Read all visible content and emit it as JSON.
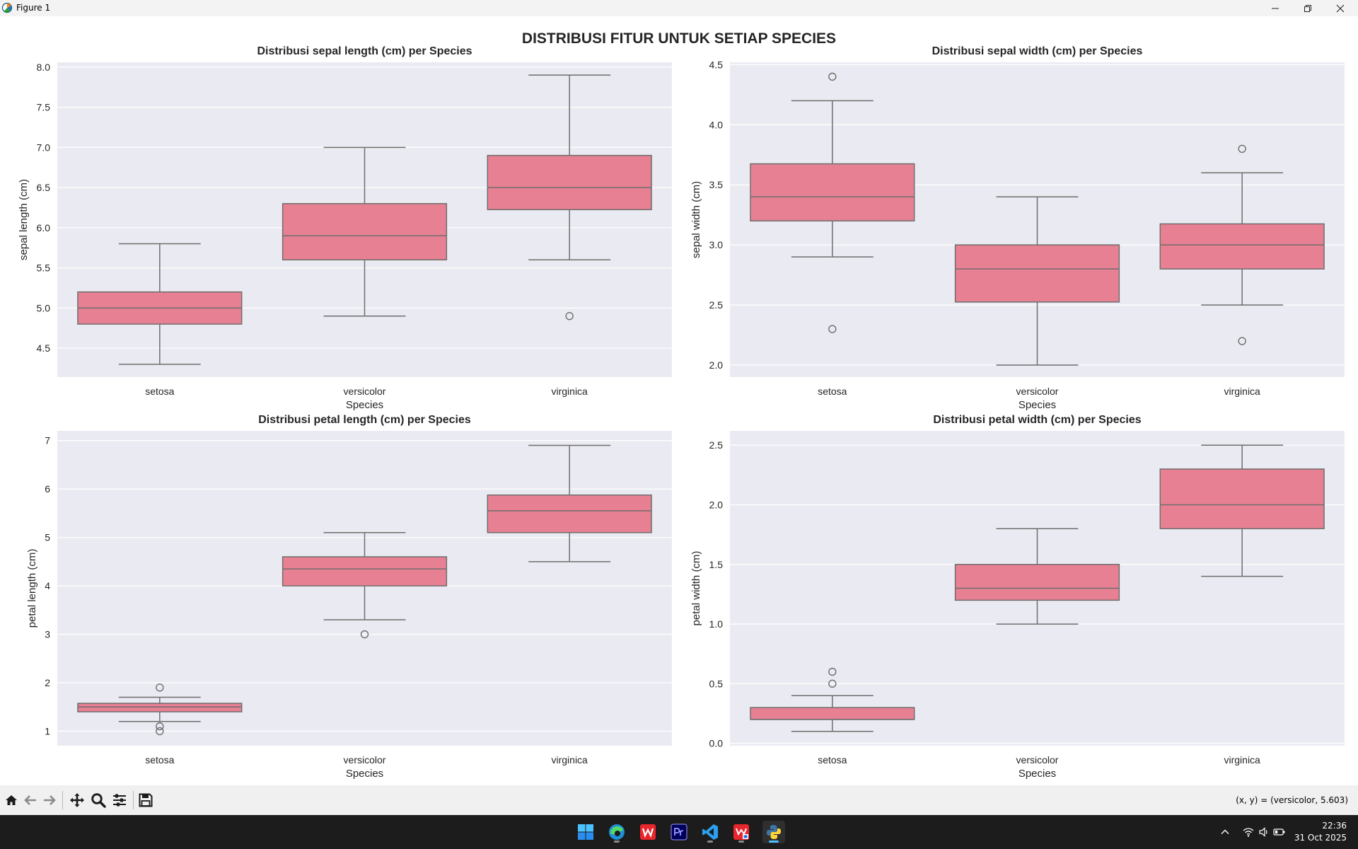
{
  "window": {
    "title": "Figure 1",
    "controls": [
      "minimize-icon",
      "restore-icon",
      "close-icon"
    ]
  },
  "figure": {
    "suptitle": "DISTRIBUSI FITUR UNTUK SETIAP SPECIES",
    "colors": {
      "box": "#e88093",
      "edge": "#6e6e6e",
      "bg": "#eaeaf2",
      "grid": "#ffffff"
    }
  },
  "chart_data": [
    {
      "type": "box",
      "title": "Distribusi sepal length (cm) per Species",
      "xlabel": "Species",
      "ylabel": "sepal length (cm)",
      "categories": [
        "setosa",
        "versicolor",
        "virginica"
      ],
      "ylim": [
        4.14,
        8.06
      ],
      "yticks": [
        4.5,
        5.0,
        5.5,
        6.0,
        6.5,
        7.0,
        7.5,
        8.0
      ],
      "tick_decimals": 1,
      "grid": true,
      "boxes": [
        {
          "whislo": 4.3,
          "q1": 4.8,
          "med": 5.0,
          "q3": 5.2,
          "whishi": 5.8,
          "fliers": []
        },
        {
          "whislo": 4.9,
          "q1": 5.6,
          "med": 5.9,
          "q3": 6.3,
          "whishi": 7.0,
          "fliers": []
        },
        {
          "whislo": 5.6,
          "q1": 6.225,
          "med": 6.5,
          "q3": 6.9,
          "whishi": 7.9,
          "fliers": [
            4.9
          ]
        }
      ]
    },
    {
      "type": "box",
      "title": "Distribusi sepal width (cm) per Species",
      "xlabel": "Species",
      "ylabel": "sepal width (cm)",
      "categories": [
        "setosa",
        "versicolor",
        "virginica"
      ],
      "ylim": [
        1.9,
        4.52
      ],
      "yticks": [
        2.0,
        2.5,
        3.0,
        3.5,
        4.0,
        4.5
      ],
      "tick_decimals": 1,
      "grid": true,
      "boxes": [
        {
          "whislo": 2.9,
          "q1": 3.2,
          "med": 3.4,
          "q3": 3.675,
          "whishi": 4.2,
          "fliers": [
            4.4,
            2.3
          ]
        },
        {
          "whislo": 2.0,
          "q1": 2.525,
          "med": 2.8,
          "q3": 3.0,
          "whishi": 3.4,
          "fliers": []
        },
        {
          "whislo": 2.5,
          "q1": 2.8,
          "med": 3.0,
          "q3": 3.175,
          "whishi": 3.6,
          "fliers": [
            3.8,
            2.2
          ]
        }
      ]
    },
    {
      "type": "box",
      "title": "Distribusi petal length (cm) per Species",
      "xlabel": "Species",
      "ylabel": "petal length (cm)",
      "categories": [
        "setosa",
        "versicolor",
        "virginica"
      ],
      "ylim": [
        0.7,
        7.2
      ],
      "yticks": [
        1,
        2,
        3,
        4,
        5,
        6,
        7
      ],
      "tick_decimals": 0,
      "grid": true,
      "boxes": [
        {
          "whislo": 1.2,
          "q1": 1.4,
          "med": 1.5,
          "q3": 1.575,
          "whishi": 1.7,
          "fliers": [
            1.9,
            1.1,
            1.0
          ]
        },
        {
          "whislo": 3.3,
          "q1": 4.0,
          "med": 4.35,
          "q3": 4.6,
          "whishi": 5.1,
          "fliers": [
            3.0
          ]
        },
        {
          "whislo": 4.5,
          "q1": 5.1,
          "med": 5.55,
          "q3": 5.875,
          "whishi": 6.9,
          "fliers": []
        }
      ]
    },
    {
      "type": "box",
      "title": "Distribusi petal width (cm) per Species",
      "xlabel": "Species",
      "ylabel": "petal width (cm)",
      "categories": [
        "setosa",
        "versicolor",
        "virginica"
      ],
      "ylim": [
        -0.02,
        2.62
      ],
      "yticks": [
        0.0,
        0.5,
        1.0,
        1.5,
        2.0,
        2.5
      ],
      "tick_decimals": 1,
      "grid": true,
      "boxes": [
        {
          "whislo": 0.1,
          "q1": 0.2,
          "med": 0.2,
          "q3": 0.3,
          "whishi": 0.4,
          "fliers": [
            0.6,
            0.5
          ]
        },
        {
          "whislo": 1.0,
          "q1": 1.2,
          "med": 1.3,
          "q3": 1.5,
          "whishi": 1.8,
          "fliers": []
        },
        {
          "whislo": 1.4,
          "q1": 1.8,
          "med": 2.0,
          "q3": 2.3,
          "whishi": 2.5,
          "fliers": []
        }
      ]
    }
  ],
  "toolbar": {
    "buttons": [
      "home-icon",
      "back-icon",
      "forward-icon",
      "pan-icon",
      "zoom-icon",
      "configure-subplots-icon",
      "save-icon"
    ],
    "coordinates": "(x, y) = (versicolor, 5.603)"
  },
  "taskbar": {
    "apps": [
      "windows-start-icon",
      "edge-icon",
      "wps-office-icon",
      "premiere-pro-icon",
      "vscode-icon",
      "wps-pdf-icon",
      "python-icon"
    ],
    "tray": [
      "chevron-up-icon",
      "wifi-icon",
      "volume-icon",
      "battery-icon"
    ],
    "time": "22:36",
    "date": "31 Oct 2025"
  }
}
